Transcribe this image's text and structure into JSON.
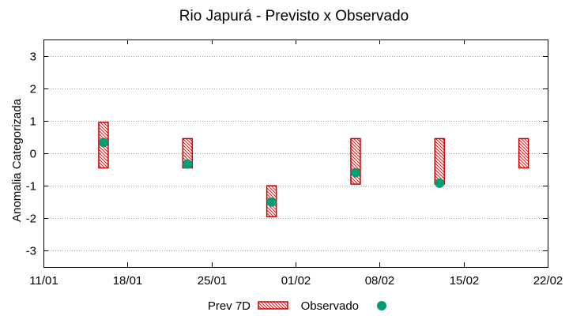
{
  "colors": {
    "forecast": "#cc0000",
    "observed": "#009e73",
    "grid": "#a0a0a0"
  },
  "chart_data": {
    "type": "range+scatter",
    "title": "Rio Japurá - Previsto x Observado",
    "xlabel": "",
    "ylabel": "Anomalia Categorizada",
    "xlim_days": [
      0,
      42
    ],
    "ylim": [
      -3.5,
      3.5
    ],
    "x_ticks": [
      {
        "day": 0,
        "label": "11/01"
      },
      {
        "day": 7,
        "label": "18/01"
      },
      {
        "day": 14,
        "label": "25/01"
      },
      {
        "day": 21,
        "label": "01/02"
      },
      {
        "day": 28,
        "label": "08/02"
      },
      {
        "day": 35,
        "label": "15/02"
      },
      {
        "day": 42,
        "label": "22/02"
      }
    ],
    "y_ticks": [
      {
        "v": 3,
        "label": "3"
      },
      {
        "v": 2,
        "label": "2"
      },
      {
        "v": 1,
        "label": "1"
      },
      {
        "v": 0,
        "label": "0"
      },
      {
        "v": -1,
        "label": "-1"
      },
      {
        "v": -2,
        "label": "-2"
      },
      {
        "v": -3,
        "label": "-3"
      }
    ],
    "grid": true,
    "legend_position": "bottom-center",
    "series": [
      {
        "name": "Prev 7D",
        "kind": "range",
        "points": [
          {
            "day": 5,
            "low": -0.45,
            "high": 0.95
          },
          {
            "day": 12,
            "low": -0.45,
            "high": 0.45
          },
          {
            "day": 19,
            "low": -1.95,
            "high": -1.0
          },
          {
            "day": 26,
            "low": -0.95,
            "high": 0.45
          },
          {
            "day": 33,
            "low": -0.95,
            "high": 0.45
          },
          {
            "day": 40,
            "low": -0.45,
            "high": 0.45
          }
        ]
      },
      {
        "name": "Observado",
        "kind": "scatter",
        "points": [
          {
            "day": 5,
            "value": 0.33
          },
          {
            "day": 12,
            "value": -0.33
          },
          {
            "day": 19,
            "value": -1.5
          },
          {
            "day": 26,
            "value": -0.6
          },
          {
            "day": 33,
            "value": -0.92
          }
        ]
      }
    ]
  }
}
